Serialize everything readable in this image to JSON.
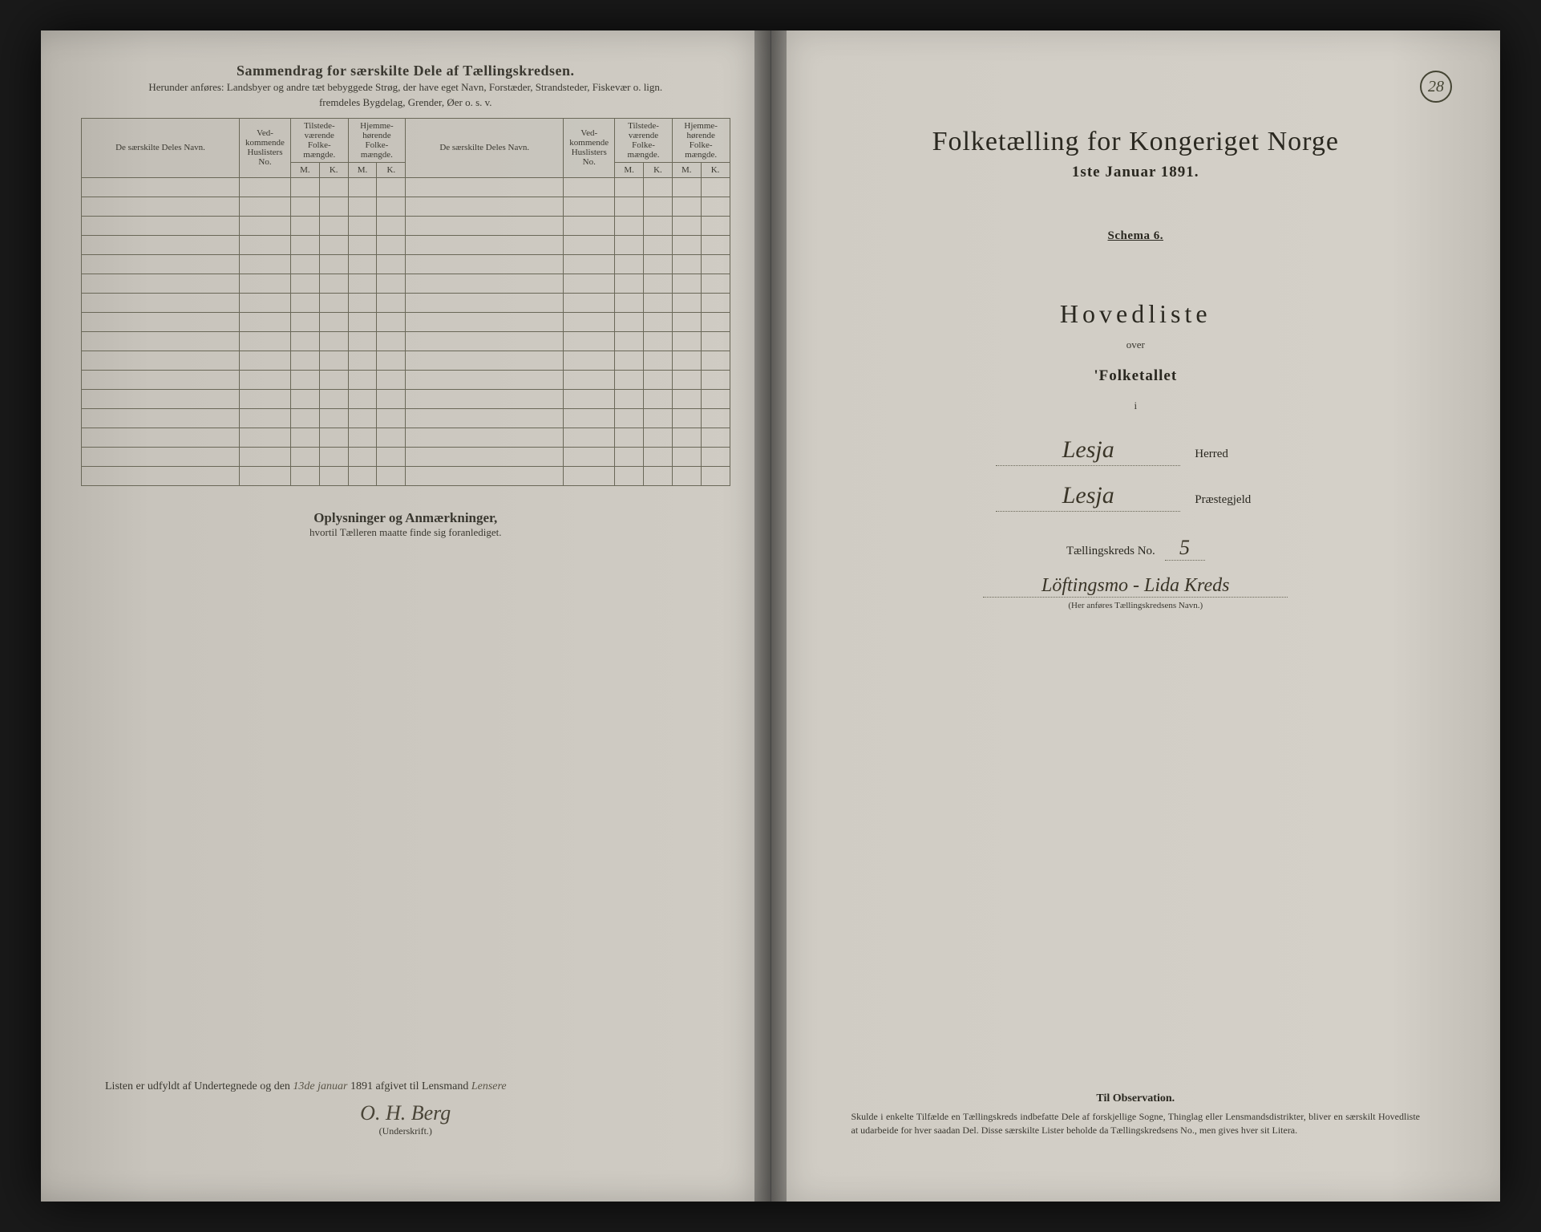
{
  "page_number": "28",
  "left": {
    "title": "Sammendrag for særskilte Dele af Tællingskredsen.",
    "subtitle1": "Herunder anføres: Landsbyer og andre tæt bebyggede Strøg, der have eget Navn, Forstæder, Strandsteder, Fiskevær o. lign.",
    "subtitle2": "fremdeles Bygdelag, Grender, Øer o. s. v.",
    "columns": {
      "deles_navn": "De særskilte Deles Navn.",
      "huslisters": "Ved-kommende Huslisters No.",
      "tilstede": "Tilstede-værende Folke-mængde.",
      "hjemme": "Hjemme-hørende Folke-mængde.",
      "m": "M.",
      "k": "K."
    },
    "oplys_title": "Oplysninger og Anmærkninger,",
    "oplys_sub": "hvortil Tælleren maatte finde sig foranlediget.",
    "sig_prefix": "Listen er udfyldt af Undertegnede og den",
    "sig_date_day": "13de",
    "sig_date_month": "januar",
    "sig_year": "1891 afgivet til Lensmand",
    "sig_lensmand": "Lensere",
    "signature": "O. H. Berg",
    "underskrift": "(Underskrift.)"
  },
  "right": {
    "main_title": "Folketælling for Kongeriget Norge",
    "date": "1ste Januar 1891.",
    "schema": "Schema 6.",
    "hovedliste": "Hovedliste",
    "over": "over",
    "folketallet": "'Folketallet",
    "i": "i",
    "herred_value": "Lesja",
    "herred_label": "Herred",
    "praeste_value": "Lesja",
    "praeste_label": "Præstegjeld",
    "kreds_label": "Tællingskreds No.",
    "kreds_no": "5",
    "kreds_name": "Löftingsmo - Lida Kreds",
    "kreds_caption": "(Her anføres Tællingskredsens Navn.)",
    "obs_title": "Til Observation.",
    "obs_text": "Skulde i enkelte Tilfælde en Tællingskreds indbefatte Dele af forskjellige Sogne, Thinglag eller Lensmandsdistrikter, bliver en særskilt Hovedliste at udarbeide for hver saadan Del. Disse særskilte Lister beholde da Tællingskredsens No., men gives hver sit Litera."
  },
  "colors": {
    "paper": "#d0ccc4",
    "ink": "#2a2820",
    "rule": "#6a6858",
    "cursive": "#3a3528"
  }
}
